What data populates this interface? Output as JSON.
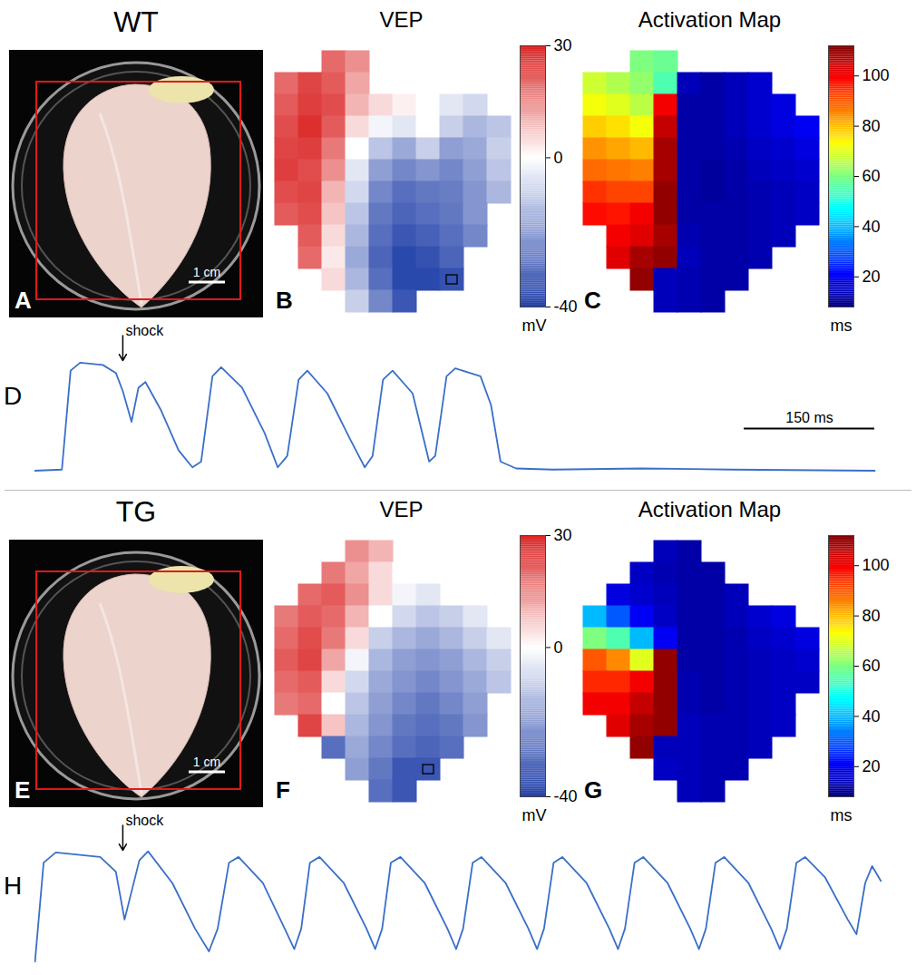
{
  "chart_data": [
    {
      "type": "image",
      "panel": "A",
      "title": "WT",
      "scale_bar": {
        "value": 1,
        "label": "1 cm"
      }
    },
    {
      "type": "heatmap",
      "panel": "B",
      "title": "VEP",
      "color": "bwr",
      "zlim": [
        -40,
        30
      ],
      "zticks": [
        30,
        0,
        -40
      ],
      "zlabel": "mV",
      "marked_cell": [
        7,
        10
      ],
      "cells": [
        [
          null,
          null,
          20,
          15,
          null,
          null,
          null,
          null,
          null,
          null
        ],
        [
          20,
          25,
          22,
          12,
          null,
          null,
          null,
          null,
          null,
          null
        ],
        [
          22,
          26,
          24,
          10,
          5,
          2,
          0,
          -5,
          -8,
          null
        ],
        [
          24,
          28,
          22,
          5,
          -2,
          -5,
          0,
          -10,
          -15,
          -12
        ],
        [
          25,
          26,
          18,
          0,
          -12,
          -18,
          -10,
          -20,
          -18,
          -10
        ],
        [
          26,
          24,
          15,
          -5,
          -20,
          -25,
          -22,
          -25,
          -20,
          -12
        ],
        [
          24,
          25,
          10,
          -8,
          -25,
          -30,
          -28,
          -27,
          -22,
          -15
        ],
        [
          22,
          24,
          8,
          -12,
          -28,
          -32,
          -30,
          -28,
          -22,
          null
        ],
        [
          null,
          22,
          5,
          -15,
          -30,
          -35,
          -33,
          -30,
          -25,
          null
        ],
        [
          null,
          20,
          3,
          -18,
          -32,
          -38,
          -36,
          -32,
          null,
          null
        ],
        [
          null,
          null,
          5,
          -15,
          -30,
          -38,
          -38,
          -36,
          null,
          null
        ],
        [
          null,
          null,
          null,
          -10,
          -25,
          -35,
          null,
          null,
          null,
          null
        ]
      ]
    },
    {
      "type": "heatmap",
      "panel": "C",
      "title": "Activation Map",
      "color": "jet",
      "zlim": [
        8,
        112
      ],
      "zticks": [
        20,
        40,
        60,
        80,
        100
      ],
      "zlabel": "ms",
      "cells": [
        [
          null,
          null,
          60,
          58,
          null,
          null,
          null,
          null,
          null,
          null
        ],
        [
          68,
          65,
          62,
          55,
          14,
          12,
          14,
          16,
          null,
          null
        ],
        [
          72,
          70,
          66,
          100,
          12,
          12,
          14,
          16,
          18,
          null
        ],
        [
          78,
          76,
          72,
          105,
          12,
          12,
          14,
          16,
          18,
          20
        ],
        [
          84,
          82,
          80,
          108,
          12,
          12,
          13,
          15,
          16,
          18
        ],
        [
          88,
          87,
          86,
          108,
          12,
          11,
          12,
          14,
          15,
          16
        ],
        [
          94,
          92,
          92,
          110,
          12,
          11,
          12,
          13,
          14,
          15
        ],
        [
          98,
          97,
          100,
          110,
          12,
          12,
          12,
          13,
          14,
          15
        ],
        [
          null,
          100,
          102,
          108,
          13,
          12,
          12,
          13,
          14,
          null
        ],
        [
          null,
          102,
          108,
          110,
          14,
          12,
          12,
          13,
          null,
          null
        ],
        [
          null,
          null,
          110,
          14,
          13,
          12,
          12,
          null,
          null,
          null
        ],
        [
          null,
          null,
          null,
          14,
          13,
          12,
          null,
          null,
          null,
          null
        ]
      ]
    },
    {
      "type": "line",
      "panel": "D",
      "color": "#3a6fc9",
      "tick_labels": false,
      "xlim": [
        0,
        990
      ],
      "ylim": [
        0,
        1.3
      ],
      "annotations": [
        {
          "x": 101,
          "text": "shock"
        }
      ],
      "scale_bar": {
        "value": 150,
        "label": "150 ms"
      },
      "x": [
        0,
        31,
        41,
        52,
        78,
        93,
        101,
        111,
        119,
        127,
        145,
        165,
        181,
        191,
        204,
        214,
        238,
        264,
        279,
        290,
        303,
        313,
        336,
        362,
        379,
        388,
        400,
        411,
        434,
        453,
        460,
        473,
        483,
        512,
        524,
        535,
        553,
        595,
        698,
        801,
        965
      ],
      "values": [
        0.02,
        0.03,
        0.9,
        0.97,
        0.95,
        0.88,
        0.72,
        0.45,
        0.75,
        0.8,
        0.55,
        0.2,
        0.05,
        0.1,
        0.85,
        0.93,
        0.75,
        0.35,
        0.05,
        0.15,
        0.82,
        0.9,
        0.7,
        0.3,
        0.05,
        0.15,
        0.82,
        0.9,
        0.7,
        0.1,
        0.15,
        0.85,
        0.92,
        0.85,
        0.6,
        0.1,
        0.04,
        0.03,
        0.04,
        0.03,
        0.02
      ]
    },
    {
      "type": "image",
      "panel": "E",
      "title": "TG",
      "scale_bar": {
        "value": 1,
        "label": "1 cm"
      }
    },
    {
      "type": "heatmap",
      "panel": "F",
      "title": "VEP",
      "color": "bwr",
      "zlim": [
        -40,
        30
      ],
      "zticks": [
        30,
        0,
        -40
      ],
      "zlabel": "mV",
      "marked_cell": [
        6,
        10
      ],
      "cells": [
        [
          null,
          null,
          null,
          15,
          10,
          null,
          null,
          null,
          null,
          null
        ],
        [
          null,
          null,
          18,
          12,
          5,
          0,
          null,
          null,
          null,
          null
        ],
        [
          null,
          20,
          22,
          15,
          5,
          -2,
          -5,
          null,
          null,
          null
        ],
        [
          18,
          22,
          20,
          10,
          0,
          -8,
          -12,
          -10,
          -5,
          null
        ],
        [
          20,
          24,
          18,
          5,
          -10,
          -15,
          -18,
          -15,
          -10,
          -5
        ],
        [
          22,
          25,
          12,
          -2,
          -15,
          -20,
          -22,
          -20,
          -15,
          -10
        ],
        [
          20,
          22,
          5,
          -8,
          -18,
          -22,
          -25,
          -22,
          -18,
          -12
        ],
        [
          18,
          20,
          0,
          -12,
          -20,
          -25,
          -28,
          -25,
          -20,
          null
        ],
        [
          null,
          25,
          8,
          -15,
          -22,
          -28,
          -30,
          -28,
          -22,
          null
        ],
        [
          null,
          null,
          -30,
          -18,
          -25,
          -30,
          -32,
          -30,
          null,
          null
        ],
        [
          null,
          null,
          null,
          -20,
          -28,
          -35,
          -35,
          null,
          null,
          null
        ],
        [
          null,
          null,
          null,
          null,
          -30,
          -35,
          null,
          null,
          null,
          null
        ]
      ]
    },
    {
      "type": "heatmap",
      "panel": "G",
      "title": "Activation Map",
      "color": "jet",
      "zlim": [
        8,
        112
      ],
      "zticks": [
        20,
        40,
        60,
        80,
        100
      ],
      "zlabel": "ms",
      "cells": [
        [
          null,
          null,
          null,
          14,
          12,
          null,
          null,
          null,
          null,
          null
        ],
        [
          null,
          null,
          15,
          13,
          12,
          12,
          null,
          null,
          null,
          null
        ],
        [
          null,
          18,
          16,
          14,
          12,
          12,
          14,
          null,
          null,
          null
        ],
        [
          40,
          30,
          20,
          15,
          12,
          12,
          14,
          16,
          18,
          null
        ],
        [
          60,
          55,
          40,
          20,
          12,
          12,
          13,
          15,
          16,
          18
        ],
        [
          90,
          85,
          70,
          110,
          12,
          12,
          13,
          14,
          15,
          16
        ],
        [
          95,
          95,
          100,
          110,
          13,
          12,
          13,
          14,
          15,
          15
        ],
        [
          100,
          100,
          105,
          110,
          13,
          12,
          13,
          14,
          15,
          null
        ],
        [
          null,
          102,
          108,
          110,
          14,
          13,
          13,
          14,
          15,
          null
        ],
        [
          null,
          null,
          110,
          14,
          14,
          13,
          13,
          14,
          null,
          null
        ],
        [
          null,
          null,
          null,
          15,
          14,
          13,
          13,
          null,
          null,
          null
        ],
        [
          null,
          null,
          null,
          null,
          14,
          13,
          null,
          null,
          null,
          null
        ]
      ]
    },
    {
      "type": "line",
      "panel": "H",
      "color": "#3a6fc9",
      "tick_labels": false,
      "xlim": [
        0,
        990
      ],
      "ylim": [
        0,
        1.3
      ],
      "annotations": [
        {
          "x": 101,
          "text": "shock"
        }
      ],
      "x": [
        0,
        10,
        24,
        75,
        93,
        103,
        120,
        130,
        158,
        184,
        200,
        210,
        223,
        234,
        262,
        287,
        298,
        306,
        316,
        327,
        355,
        381,
        391,
        399,
        409,
        420,
        448,
        474,
        484,
        492,
        503,
        513,
        541,
        567,
        577,
        585,
        596,
        606,
        634,
        660,
        670,
        678,
        689,
        699,
        727,
        753,
        763,
        771,
        782,
        792,
        820,
        846,
        856,
        864,
        875,
        885,
        908,
        934,
        944,
        954,
        962,
        972
      ],
      "values": [
        0,
        0.88,
        0.97,
        0.93,
        0.8,
        0.38,
        0.9,
        0.98,
        0.7,
        0.3,
        0.1,
        0.3,
        0.88,
        0.93,
        0.7,
        0.3,
        0.12,
        0.3,
        0.88,
        0.93,
        0.7,
        0.3,
        0.12,
        0.3,
        0.88,
        0.93,
        0.7,
        0.3,
        0.12,
        0.3,
        0.88,
        0.93,
        0.7,
        0.3,
        0.12,
        0.3,
        0.88,
        0.93,
        0.7,
        0.3,
        0.12,
        0.3,
        0.88,
        0.93,
        0.7,
        0.3,
        0.12,
        0.3,
        0.88,
        0.93,
        0.7,
        0.3,
        0.12,
        0.3,
        0.88,
        0.93,
        0.75,
        0.38,
        0.25,
        0.7,
        0.85,
        0.72
      ]
    }
  ]
}
